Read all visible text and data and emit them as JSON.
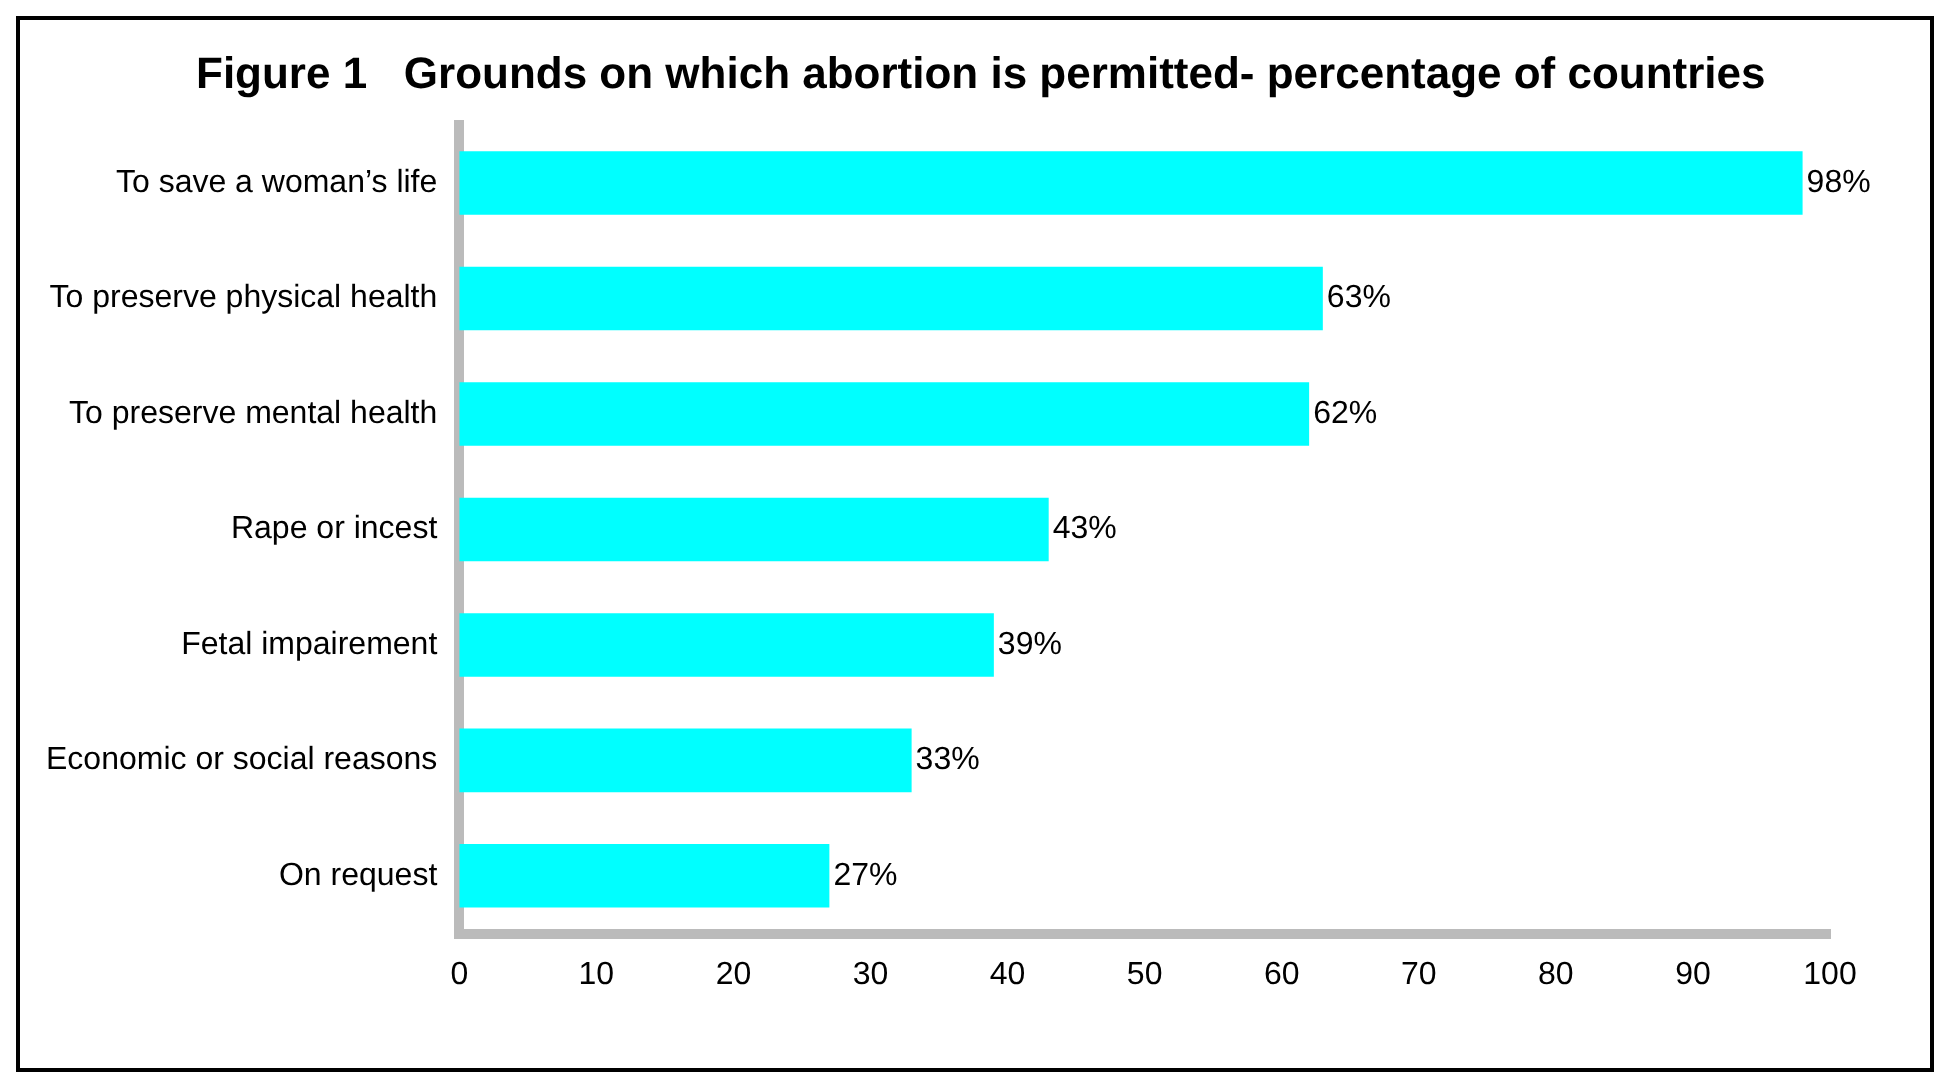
{
  "chart_data": {
    "type": "bar",
    "orientation": "horizontal",
    "title": "Figure 1   Grounds on which abortion is permitted- percentage of countries",
    "categories": [
      "To save a woman’s life",
      "To preserve physical health",
      "To preserve mental health",
      "Rape or incest",
      "Fetal impairement",
      "Economic or social reasons",
      "On request"
    ],
    "values": [
      98,
      63,
      62,
      43,
      39,
      33,
      27
    ],
    "value_labels": [
      "98%",
      "63%",
      "62%",
      "43%",
      "39%",
      "33%",
      "27%"
    ],
    "color": "#00ffff",
    "xlim": [
      0,
      100
    ],
    "xticks": [
      0,
      10,
      20,
      30,
      40,
      50,
      60,
      70,
      80,
      90,
      100
    ],
    "grid": false,
    "legend": false
  }
}
